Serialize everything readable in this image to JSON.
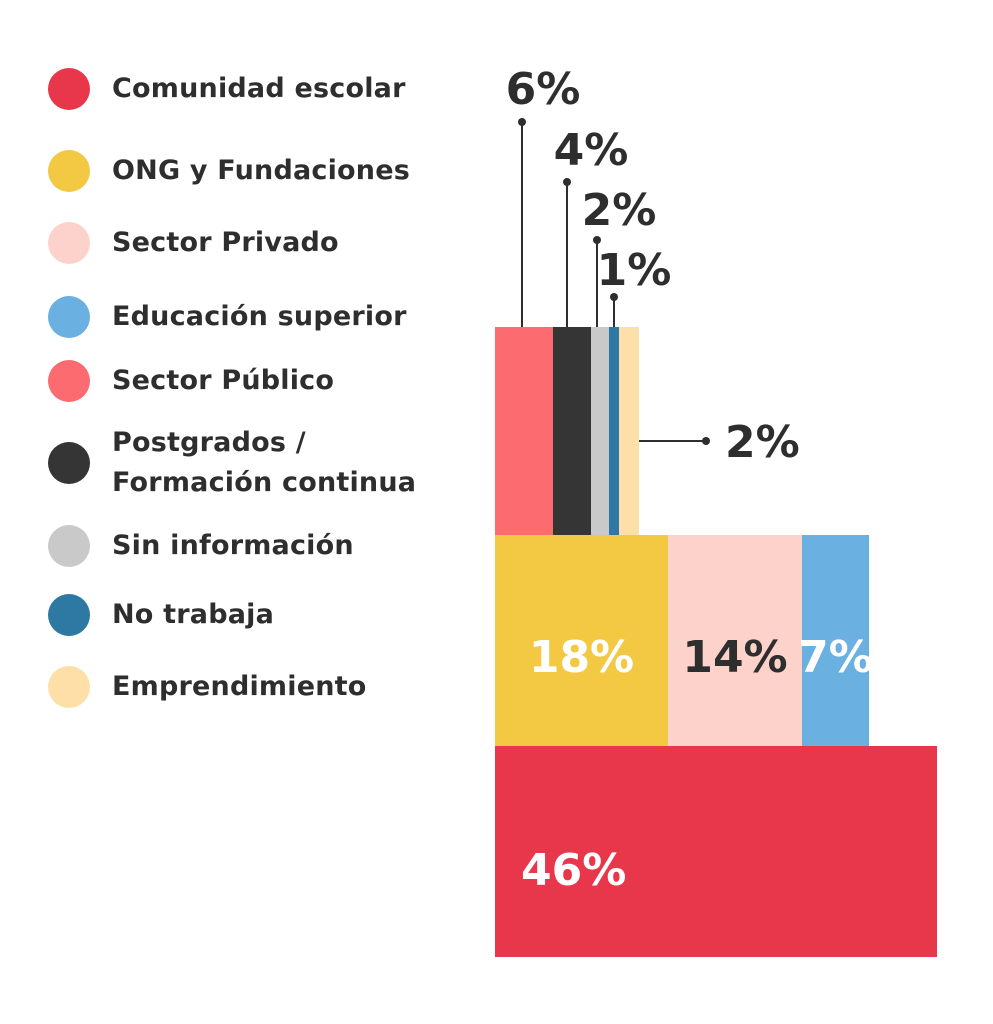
{
  "chart_data": {
    "type": "treemap",
    "categories": [
      {
        "name": "Comunidad escolar",
        "value": 46,
        "label": "46%",
        "color": "#E8374A"
      },
      {
        "name": "ONG y Fundaciones",
        "value": 18,
        "label": "18%",
        "color": "#F3C842"
      },
      {
        "name": "Sector Privado",
        "value": 14,
        "label": "14%",
        "color": "#FDD2CA"
      },
      {
        "name": "Educación superior",
        "value": 7,
        "label": "7%",
        "color": "#6AB0E0"
      },
      {
        "name": "Sector Público",
        "value": 6,
        "label": "6%",
        "color": "#FC6B70"
      },
      {
        "name": "Postgrados /\nFormación continua",
        "value": 4,
        "label": "4%",
        "color": "#353535"
      },
      {
        "name": "Sin información",
        "value": 2,
        "label": "2%",
        "color": "#C9C9C9"
      },
      {
        "name": "No trabaja",
        "value": 1,
        "label": "1%",
        "color": "#2D79A3"
      },
      {
        "name": "Emprendimiento",
        "value": 2,
        "label": "2%",
        "color": "#FEDFA8"
      }
    ],
    "legend_placement": "left"
  }
}
